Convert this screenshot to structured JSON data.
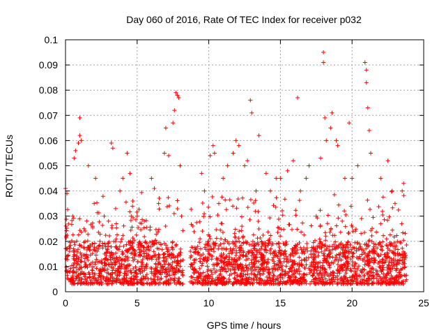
{
  "chart_data": {
    "type": "scatter",
    "title": "Day 060 of 2016, Rate Of TEC Index for receiver p032",
    "xlabel": "GPS time / hours",
    "ylabel": "ROTI / TECUs",
    "xlim": [
      0,
      25
    ],
    "ylim": [
      0,
      0.1
    ],
    "x_ticks": [
      0,
      5,
      10,
      15,
      20,
      25
    ],
    "x_tick_labels": [
      "0",
      "5",
      "10",
      "15",
      "20",
      "25"
    ],
    "y_ticks": [
      0,
      0.01,
      0.02,
      0.03,
      0.04,
      0.05,
      0.06,
      0.07,
      0.08,
      0.09,
      0.1
    ],
    "y_tick_labels": [
      "0",
      "0.01",
      "0.02",
      "0.03",
      "0.04",
      "0.05",
      "0.06",
      "0.07",
      "0.08",
      "0.09",
      "0.1"
    ],
    "grid": true,
    "marker": "+",
    "marker_color": "#ff0000",
    "data_gap_hours": [
      8.2,
      8.7
    ],
    "x_data_range": [
      0,
      23.8
    ],
    "typical_y_range": [
      0.003,
      0.02
    ],
    "series": [
      {
        "name": "",
        "sampled_points": [
          [
            0.0,
            0.041
          ],
          [
            0.1,
            0.039
          ],
          [
            0.5,
            0.03
          ],
          [
            0.6,
            0.053
          ],
          [
            0.7,
            0.056
          ],
          [
            0.9,
            0.059
          ],
          [
            1.0,
            0.069
          ],
          [
            1.0,
            0.062
          ],
          [
            1.1,
            0.06
          ],
          [
            1.3,
            0.025
          ],
          [
            1.6,
            0.05
          ],
          [
            2.0,
            0.035
          ],
          [
            2.1,
            0.045
          ],
          [
            2.4,
            0.02
          ],
          [
            2.7,
            0.03
          ],
          [
            3.0,
            0.028
          ],
          [
            3.2,
            0.059
          ],
          [
            3.3,
            0.057
          ],
          [
            3.5,
            0.033
          ],
          [
            3.8,
            0.04
          ],
          [
            4.0,
            0.045
          ],
          [
            4.3,
            0.055
          ],
          [
            4.5,
            0.047
          ],
          [
            4.7,
            0.036
          ],
          [
            5.0,
            0.03
          ],
          [
            5.5,
            0.028
          ],
          [
            6.0,
            0.045
          ],
          [
            6.2,
            0.041
          ],
          [
            6.5,
            0.035
          ],
          [
            6.9,
            0.055
          ],
          [
            7.0,
            0.065
          ],
          [
            7.2,
            0.054
          ],
          [
            7.5,
            0.067
          ],
          [
            7.6,
            0.072
          ],
          [
            7.7,
            0.079
          ],
          [
            7.8,
            0.078
          ],
          [
            7.9,
            0.077
          ],
          [
            8.0,
            0.05
          ],
          [
            8.1,
            0.03
          ],
          [
            9.5,
            0.047
          ],
          [
            9.7,
            0.04
          ],
          [
            10.1,
            0.054
          ],
          [
            10.3,
            0.058
          ],
          [
            10.4,
            0.055
          ],
          [
            10.7,
            0.035
          ],
          [
            11.0,
            0.045
          ],
          [
            11.3,
            0.05
          ],
          [
            11.7,
            0.055
          ],
          [
            11.9,
            0.06
          ],
          [
            12.1,
            0.058
          ],
          [
            12.5,
            0.05
          ],
          [
            12.7,
            0.052
          ],
          [
            12.9,
            0.076
          ],
          [
            13.0,
            0.071
          ],
          [
            13.3,
            0.04
          ],
          [
            13.5,
            0.062
          ],
          [
            14.0,
            0.047
          ],
          [
            14.3,
            0.04
          ],
          [
            14.7,
            0.045
          ],
          [
            15.0,
            0.045
          ],
          [
            15.5,
            0.048
          ],
          [
            15.9,
            0.052
          ],
          [
            16.2,
            0.077
          ],
          [
            16.4,
            0.04
          ],
          [
            16.8,
            0.045
          ],
          [
            17.0,
            0.05
          ],
          [
            17.5,
            0.03
          ],
          [
            17.8,
            0.053
          ],
          [
            18.0,
            0.095
          ],
          [
            18.0,
            0.091
          ],
          [
            18.1,
            0.069
          ],
          [
            18.2,
            0.06
          ],
          [
            18.5,
            0.065
          ],
          [
            18.6,
            0.071
          ],
          [
            18.9,
            0.06
          ],
          [
            19.0,
            0.058
          ],
          [
            19.5,
            0.045
          ],
          [
            19.8,
            0.067
          ],
          [
            20.0,
            0.045
          ],
          [
            20.4,
            0.05
          ],
          [
            20.9,
            0.091
          ],
          [
            21.0,
            0.088
          ],
          [
            21.0,
            0.083
          ],
          [
            21.1,
            0.073
          ],
          [
            21.2,
            0.064
          ],
          [
            21.3,
            0.055
          ],
          [
            22.0,
            0.045
          ],
          [
            22.5,
            0.052
          ],
          [
            22.8,
            0.04
          ],
          [
            23.0,
            0.035
          ],
          [
            23.5,
            0.04
          ],
          [
            23.6,
            0.043
          ]
        ]
      }
    ]
  }
}
